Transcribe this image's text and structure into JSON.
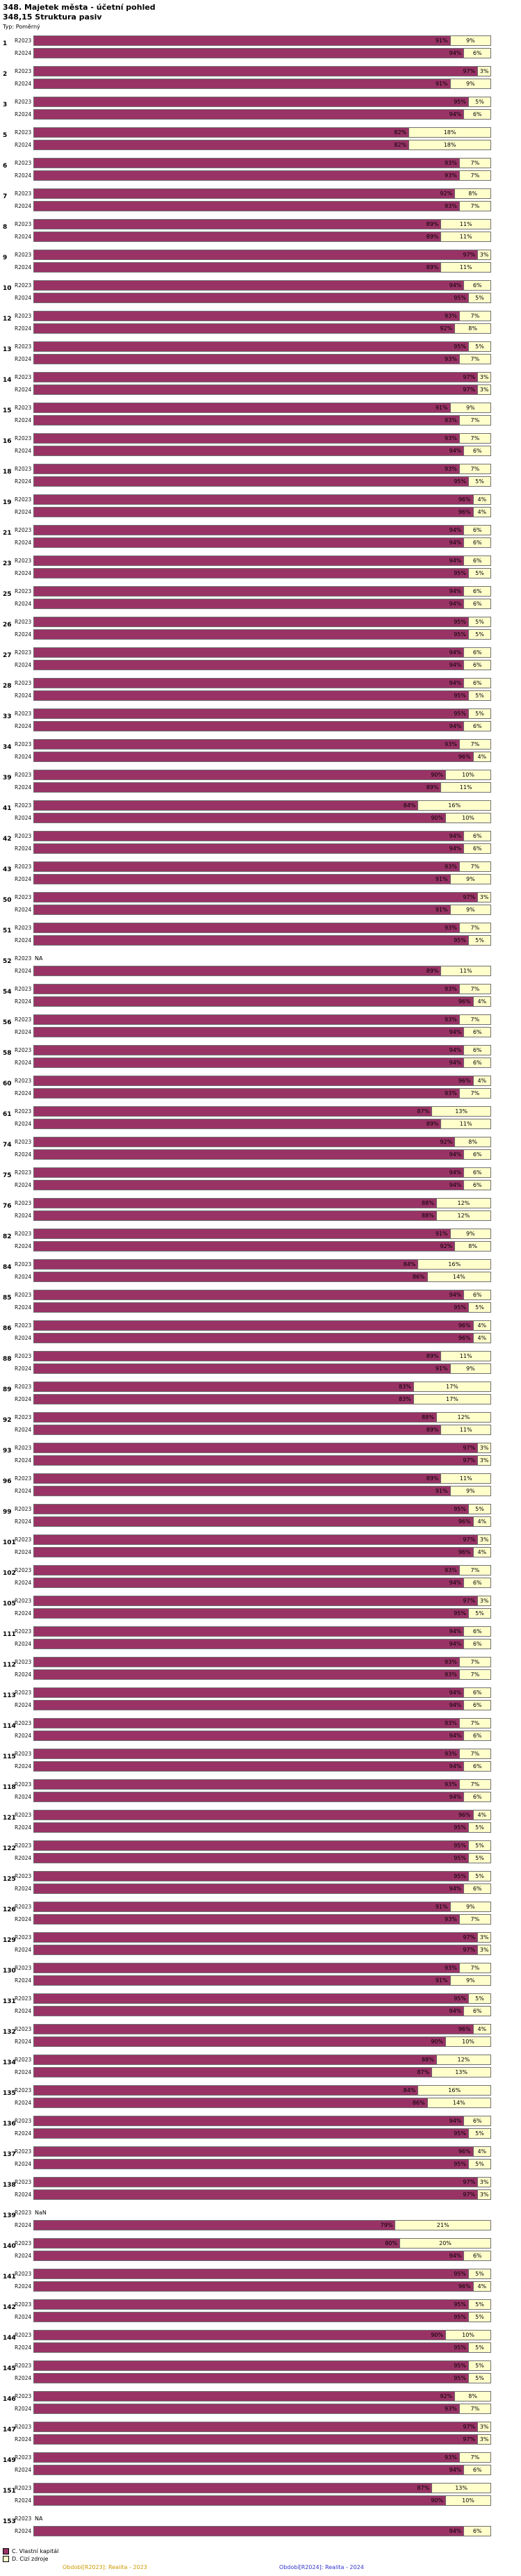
{
  "title": "348. Majetek města - účetní pohled",
  "subtitle": "348,15 Struktura pasiv",
  "type_label": "Typ: Poměrný",
  "legend": {
    "series1": "C. Vlastní kapitál",
    "series2": "D. Cizí zdroje",
    "period1": "Období[R2023]: Realita - 2023",
    "period2": "Období[R2024]: Realita - 2024"
  },
  "colors": {
    "own_capital": "#993366",
    "foreign_sources": "#FFFFCC",
    "bar_border": "#707070",
    "period1_text": "#CC9900",
    "period2_text": "#3333CC"
  },
  "chart_data": {
    "type": "bar",
    "orientation": "horizontal",
    "stacked": true,
    "unit": "%",
    "xlim": [
      0,
      100
    ],
    "grid": false,
    "legend_position": "bottom-left",
    "series": [
      "C. Vlastní kapitál",
      "D. Cizí zdroje"
    ],
    "row_labels": [
      "R2023",
      "R2024"
    ],
    "row_keys": [
      "r2023",
      "r2024"
    ],
    "groups": [
      {
        "id": "1",
        "r2023": [
          91,
          9
        ],
        "r2024": [
          94,
          6
        ]
      },
      {
        "id": "2",
        "r2023": [
          97,
          3
        ],
        "r2024": [
          91,
          9
        ]
      },
      {
        "id": "3",
        "r2023": [
          95,
          5
        ],
        "r2024": [
          94,
          6
        ]
      },
      {
        "id": "5",
        "r2023": [
          82,
          18
        ],
        "r2024": [
          82,
          18
        ]
      },
      {
        "id": "6",
        "r2023": [
          93,
          7
        ],
        "r2024": [
          93,
          7
        ]
      },
      {
        "id": "7",
        "r2023": [
          92,
          8
        ],
        "r2024": [
          93,
          7
        ]
      },
      {
        "id": "8",
        "r2023": [
          89,
          11
        ],
        "r2024": [
          89,
          11
        ]
      },
      {
        "id": "9",
        "r2023": [
          97,
          3
        ],
        "r2024": [
          89,
          11
        ]
      },
      {
        "id": "10",
        "r2023": [
          94,
          6
        ],
        "r2024": [
          95,
          5
        ]
      },
      {
        "id": "12",
        "r2023": [
          93,
          7
        ],
        "r2024": [
          92,
          8
        ]
      },
      {
        "id": "13",
        "r2023": [
          95,
          5
        ],
        "r2024": [
          93,
          7
        ]
      },
      {
        "id": "14",
        "r2023": [
          97,
          3
        ],
        "r2024": [
          97,
          3
        ]
      },
      {
        "id": "15",
        "r2023": [
          91,
          9
        ],
        "r2024": [
          93,
          7
        ]
      },
      {
        "id": "16",
        "r2023": [
          93,
          7
        ],
        "r2024": [
          94,
          6
        ]
      },
      {
        "id": "18",
        "r2023": [
          93,
          7
        ],
        "r2024": [
          95,
          5
        ]
      },
      {
        "id": "19",
        "r2023": [
          96,
          4
        ],
        "r2024": [
          96,
          4
        ]
      },
      {
        "id": "21",
        "r2023": [
          94,
          6
        ],
        "r2024": [
          94,
          6
        ]
      },
      {
        "id": "23",
        "r2023": [
          94,
          6
        ],
        "r2024": [
          95,
          5
        ]
      },
      {
        "id": "25",
        "r2023": [
          94,
          6
        ],
        "r2024": [
          94,
          6
        ]
      },
      {
        "id": "26",
        "r2023": [
          95,
          5
        ],
        "r2024": [
          95,
          5
        ]
      },
      {
        "id": "27",
        "r2023": [
          94,
          6
        ],
        "r2024": [
          94,
          6
        ]
      },
      {
        "id": "28",
        "r2023": [
          94,
          6
        ],
        "r2024": [
          95,
          5
        ]
      },
      {
        "id": "33",
        "r2023": [
          95,
          5
        ],
        "r2024": [
          94,
          6
        ]
      },
      {
        "id": "34",
        "r2023": [
          93,
          7
        ],
        "r2024": [
          96,
          4
        ]
      },
      {
        "id": "39",
        "r2023": [
          90,
          10
        ],
        "r2024": [
          89,
          11
        ]
      },
      {
        "id": "41",
        "r2023": [
          84,
          16
        ],
        "r2024": [
          90,
          10
        ]
      },
      {
        "id": "42",
        "r2023": [
          94,
          6
        ],
        "r2024": [
          94,
          6
        ]
      },
      {
        "id": "43",
        "r2023": [
          93,
          7
        ],
        "r2024": [
          91,
          9
        ]
      },
      {
        "id": "50",
        "r2023": [
          97,
          3
        ],
        "r2024": [
          91,
          9
        ]
      },
      {
        "id": "51",
        "r2023": [
          93,
          7
        ],
        "r2024": [
          95,
          5
        ]
      },
      {
        "id": "52",
        "r2023": "NA",
        "r2024": [
          89,
          11
        ]
      },
      {
        "id": "54",
        "r2023": [
          93,
          7
        ],
        "r2024": [
          96,
          4
        ]
      },
      {
        "id": "56",
        "r2023": [
          93,
          7
        ],
        "r2024": [
          94,
          6
        ]
      },
      {
        "id": "58",
        "r2023": [
          94,
          6
        ],
        "r2024": [
          94,
          6
        ]
      },
      {
        "id": "60",
        "r2023": [
          96,
          4
        ],
        "r2024": [
          93,
          7
        ]
      },
      {
        "id": "61",
        "r2023": [
          87,
          13
        ],
        "r2024": [
          89,
          11
        ]
      },
      {
        "id": "74",
        "r2023": [
          92,
          8
        ],
        "r2024": [
          94,
          6
        ]
      },
      {
        "id": "75",
        "r2023": [
          94,
          6
        ],
        "r2024": [
          94,
          6
        ]
      },
      {
        "id": "76",
        "r2023": [
          88,
          12
        ],
        "r2024": [
          88,
          12
        ]
      },
      {
        "id": "82",
        "r2023": [
          91,
          9
        ],
        "r2024": [
          92,
          8
        ]
      },
      {
        "id": "84",
        "r2023": [
          84,
          16
        ],
        "r2024": [
          86,
          14
        ]
      },
      {
        "id": "85",
        "r2023": [
          94,
          6
        ],
        "r2024": [
          95,
          5
        ]
      },
      {
        "id": "86",
        "r2023": [
          96,
          4
        ],
        "r2024": [
          96,
          4
        ]
      },
      {
        "id": "88",
        "r2023": [
          89,
          11
        ],
        "r2024": [
          91,
          9
        ]
      },
      {
        "id": "89",
        "r2023": [
          83,
          17
        ],
        "r2024": [
          83,
          17
        ]
      },
      {
        "id": "92",
        "r2023": [
          88,
          12
        ],
        "r2024": [
          89,
          11
        ]
      },
      {
        "id": "93",
        "r2023": [
          97,
          3
        ],
        "r2024": [
          97,
          3
        ]
      },
      {
        "id": "96",
        "r2023": [
          89,
          11
        ],
        "r2024": [
          91,
          9
        ]
      },
      {
        "id": "99",
        "r2023": [
          95,
          5
        ],
        "r2024": [
          96,
          4
        ]
      },
      {
        "id": "101",
        "r2023": [
          97,
          3
        ],
        "r2024": [
          96,
          4
        ]
      },
      {
        "id": "102",
        "r2023": [
          93,
          7
        ],
        "r2024": [
          94,
          6
        ]
      },
      {
        "id": "105",
        "r2023": [
          97,
          3
        ],
        "r2024": [
          95,
          5
        ]
      },
      {
        "id": "111",
        "r2023": [
          94,
          6
        ],
        "r2024": [
          94,
          6
        ]
      },
      {
        "id": "112",
        "r2023": [
          93,
          7
        ],
        "r2024": [
          93,
          7
        ]
      },
      {
        "id": "113",
        "r2023": [
          94,
          6
        ],
        "r2024": [
          94,
          6
        ]
      },
      {
        "id": "114",
        "r2023": [
          93,
          7
        ],
        "r2024": [
          94,
          6
        ]
      },
      {
        "id": "115",
        "r2023": [
          93,
          7
        ],
        "r2024": [
          94,
          6
        ]
      },
      {
        "id": "118",
        "r2023": [
          93,
          7
        ],
        "r2024": [
          94,
          6
        ]
      },
      {
        "id": "121",
        "r2023": [
          96,
          4
        ],
        "r2024": [
          95,
          5
        ]
      },
      {
        "id": "122",
        "r2023": [
          95,
          5
        ],
        "r2024": [
          95,
          5
        ]
      },
      {
        "id": "125",
        "r2023": [
          95,
          5
        ],
        "r2024": [
          94,
          6
        ]
      },
      {
        "id": "126",
        "r2023": [
          91,
          9
        ],
        "r2024": [
          93,
          7
        ]
      },
      {
        "id": "129",
        "r2023": [
          97,
          3
        ],
        "r2024": [
          97,
          3
        ]
      },
      {
        "id": "130",
        "r2023": [
          93,
          7
        ],
        "r2024": [
          91,
          9
        ]
      },
      {
        "id": "131",
        "r2023": [
          95,
          5
        ],
        "r2024": [
          94,
          6
        ]
      },
      {
        "id": "132",
        "r2023": [
          96,
          4
        ],
        "r2024": [
          90,
          10
        ]
      },
      {
        "id": "134",
        "r2023": [
          88,
          12
        ],
        "r2024": [
          87,
          13
        ]
      },
      {
        "id": "135",
        "r2023": [
          84,
          16
        ],
        "r2024": [
          86,
          14
        ]
      },
      {
        "id": "136",
        "r2023": [
          94,
          6
        ],
        "r2024": [
          95,
          5
        ]
      },
      {
        "id": "137",
        "r2023": [
          96,
          4
        ],
        "r2024": [
          95,
          5
        ]
      },
      {
        "id": "138",
        "r2023": [
          97,
          3
        ],
        "r2024": [
          97,
          3
        ]
      },
      {
        "id": "139",
        "r2023": "NaN",
        "r2024": [
          79,
          21
        ]
      },
      {
        "id": "140",
        "r2023": [
          80,
          20
        ],
        "r2024": [
          94,
          6
        ]
      },
      {
        "id": "141",
        "r2023": [
          95,
          5
        ],
        "r2024": [
          96,
          4
        ]
      },
      {
        "id": "142",
        "r2023": [
          95,
          5
        ],
        "r2024": [
          95,
          5
        ]
      },
      {
        "id": "144",
        "r2023": [
          90,
          10
        ],
        "r2024": [
          95,
          5
        ]
      },
      {
        "id": "145",
        "r2023": [
          95,
          5
        ],
        "r2024": [
          95,
          5
        ]
      },
      {
        "id": "146",
        "r2023": [
          92,
          8
        ],
        "r2024": [
          93,
          7
        ]
      },
      {
        "id": "147",
        "r2023": [
          97,
          3
        ],
        "r2024": [
          97,
          3
        ]
      },
      {
        "id": "149",
        "r2023": [
          93,
          7
        ],
        "r2024": [
          94,
          6
        ]
      },
      {
        "id": "151",
        "r2023": [
          87,
          13
        ],
        "r2024": [
          90,
          10
        ]
      },
      {
        "id": "153",
        "r2023": "NA",
        "r2024": [
          94,
          6
        ]
      }
    ]
  }
}
